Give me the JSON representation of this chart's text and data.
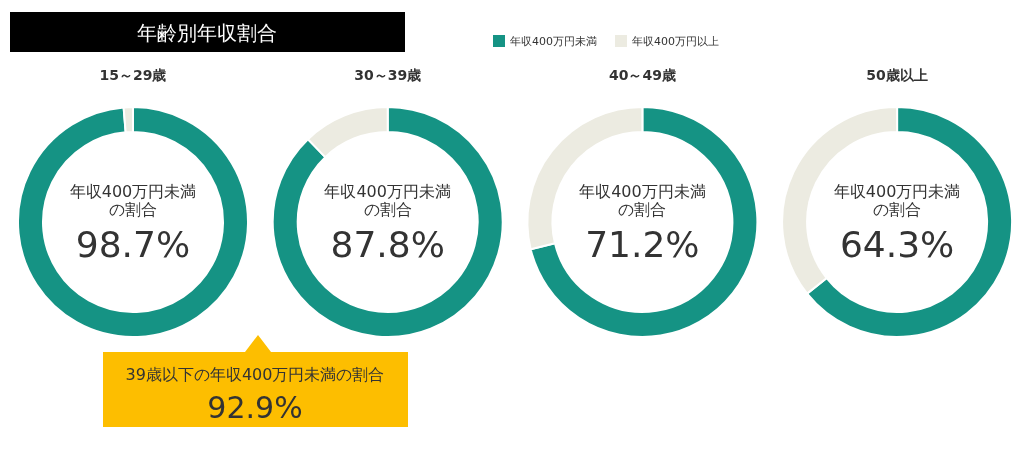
{
  "chart_data": [
    {
      "type": "other",
      "title": "年齢別年収割合",
      "annotations": [
        "39歳以下の年収400万円未満の割合",
        "92.9%"
      ]
    },
    {
      "type": "donut",
      "title": "15～29歳",
      "categories": [
        "年収400万円未満",
        "年収400万円以上"
      ],
      "values": [
        98.7,
        1.3
      ],
      "colors": [
        "#159384",
        "#ecebe1"
      ],
      "value_labels": [
        "98.7%",
        null
      ],
      "annotations": [
        "年収400万円未満の割合"
      ],
      "legend": "top"
    },
    {
      "type": "donut",
      "title": "30～39歳",
      "categories": [
        null,
        null
      ],
      "values": [
        87.8,
        12.2
      ],
      "colors": [
        "#159384",
        "#ecebe1"
      ],
      "value_labels": [
        "87.8%",
        null
      ],
      "annotations": [
        "年収400万円未満の割合"
      ]
    },
    {
      "type": "donut",
      "title": "40～49歳",
      "categories": [
        null,
        null
      ],
      "values": [
        71.2,
        28.8
      ],
      "colors": [
        "#159384",
        "#ecebe1"
      ],
      "value_labels": [
        "71.2%",
        null
      ],
      "annotations": [
        "年収400万円未満の割合"
      ]
    },
    {
      "type": "donut",
      "title": "50歳以上",
      "categories": [
        null,
        null
      ],
      "values": [
        64.3,
        35.7
      ],
      "colors": [
        "#159384",
        "#ecebe1"
      ],
      "value_labels": [
        "64.3%",
        null
      ],
      "annotations": [
        "年収400万円未満の割合"
      ]
    }
  ]
}
